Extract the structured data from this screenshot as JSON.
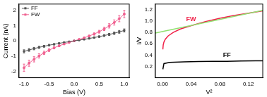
{
  "chart_data": [
    {
      "type": "line",
      "x_label": "Bias (V)",
      "y_label": "Current (nA)",
      "xlim": [
        -1.1,
        1.1
      ],
      "ylim": [
        -2.4,
        2.4
      ],
      "xticks": [
        {
          "value": -1,
          "label": "-1.0"
        },
        {
          "value": -0.5,
          "label": "-0.5"
        },
        {
          "value": 0,
          "label": "0.0"
        },
        {
          "value": 0.5,
          "label": "0.5"
        },
        {
          "value": 1,
          "label": "1.0"
        }
      ],
      "yticks": [
        -2,
        -1,
        0,
        1,
        2
      ],
      "legend": "upper left",
      "grid": false,
      "series": [
        {
          "name": "FF",
          "color": "#555555",
          "marker": "square",
          "line_style": "solid",
          "x": [
            -1,
            -0.9,
            -0.8,
            -0.7,
            -0.6,
            -0.5,
            -0.4,
            -0.3,
            -0.2,
            -0.1,
            0,
            0.1,
            0.2,
            0.3,
            0.4,
            0.5,
            0.6,
            0.7,
            0.8,
            0.9,
            1
          ],
          "values": [
            -0.68,
            -0.59,
            -0.5,
            -0.42,
            -0.35,
            -0.28,
            -0.22,
            -0.16,
            -0.1,
            -0.05,
            0,
            0.05,
            0.1,
            0.16,
            0.22,
            0.28,
            0.35,
            0.42,
            0.5,
            0.59,
            0.68
          ],
          "errors": [
            0.1,
            0.09,
            0.08,
            0.07,
            0.06,
            0.05,
            0.04,
            0.03,
            0.02,
            0.01,
            0,
            0.01,
            0.02,
            0.03,
            0.04,
            0.05,
            0.06,
            0.07,
            0.08,
            0.09,
            0.1
          ]
        },
        {
          "name": "FW",
          "color": "#f06090",
          "marker": "circle",
          "line_style": "solid",
          "x": [
            -1,
            -0.9,
            -0.8,
            -0.7,
            -0.6,
            -0.5,
            -0.4,
            -0.3,
            -0.2,
            -0.1,
            0,
            0.1,
            0.2,
            0.3,
            0.4,
            0.5,
            0.6,
            0.7,
            0.8,
            0.9,
            1
          ],
          "values": [
            -1.75,
            -1.45,
            -1.2,
            -0.98,
            -0.78,
            -0.6,
            -0.45,
            -0.32,
            -0.2,
            -0.1,
            0,
            0.1,
            0.2,
            0.32,
            0.45,
            0.6,
            0.78,
            0.98,
            1.2,
            1.45,
            1.75
          ],
          "errors": [
            0.24,
            0.2,
            0.17,
            0.14,
            0.11,
            0.09,
            0.07,
            0.05,
            0.04,
            0.02,
            0,
            0.02,
            0.04,
            0.05,
            0.07,
            0.09,
            0.11,
            0.14,
            0.17,
            0.2,
            0.24
          ]
        }
      ]
    },
    {
      "type": "line",
      "x_label": "V²",
      "y_label": "I/V",
      "xlim": [
        -0.01,
        0.14
      ],
      "ylim": [
        0,
        1.3
      ],
      "xticks": [
        {
          "value": 0,
          "label": "0.00"
        },
        {
          "value": 0.04,
          "label": "0.04"
        },
        {
          "value": 0.08,
          "label": "0.08"
        },
        {
          "value": 0.12,
          "label": "0.12"
        }
      ],
      "yticks": [
        {
          "value": 0.2,
          "label": "0.2"
        },
        {
          "value": 0.4,
          "label": "0.4"
        },
        {
          "value": 0.6,
          "label": "0.6"
        },
        {
          "value": 0.8,
          "label": "0.8"
        },
        {
          "value": 1,
          "label": "1.0"
        },
        {
          "value": 1.2,
          "label": "1.2"
        }
      ],
      "grid": false,
      "series": [
        {
          "color": "#90e070",
          "marker": "none",
          "line_style": "solid",
          "x": [
            -0.01,
            0.14
          ],
          "values": [
            0.79,
            1.19
          ]
        },
        {
          "name": "FW",
          "color": "#f02048",
          "marker": "none",
          "line_style": "solid",
          "x": [
            0.0005,
            0.001,
            0.002,
            0.004,
            0.008,
            0.015,
            0.025,
            0.04,
            0.06,
            0.08,
            0.1,
            0.12,
            0.14
          ],
          "values": [
            0.5,
            0.58,
            0.63,
            0.68,
            0.74,
            0.8,
            0.86,
            0.92,
            0.99,
            1.05,
            1.1,
            1.14,
            1.18
          ]
        },
        {
          "name": "FF",
          "color": "#000000",
          "marker": "none",
          "line_style": "solid",
          "x": [
            0.0005,
            0.002,
            0.01,
            0.03,
            0.05,
            0.07,
            0.09,
            0.11,
            0.13,
            0.14
          ],
          "values": [
            0.15,
            0.25,
            0.27,
            0.28,
            0.285,
            0.29,
            0.29,
            0.295,
            0.3,
            0.3
          ]
        }
      ]
    }
  ]
}
